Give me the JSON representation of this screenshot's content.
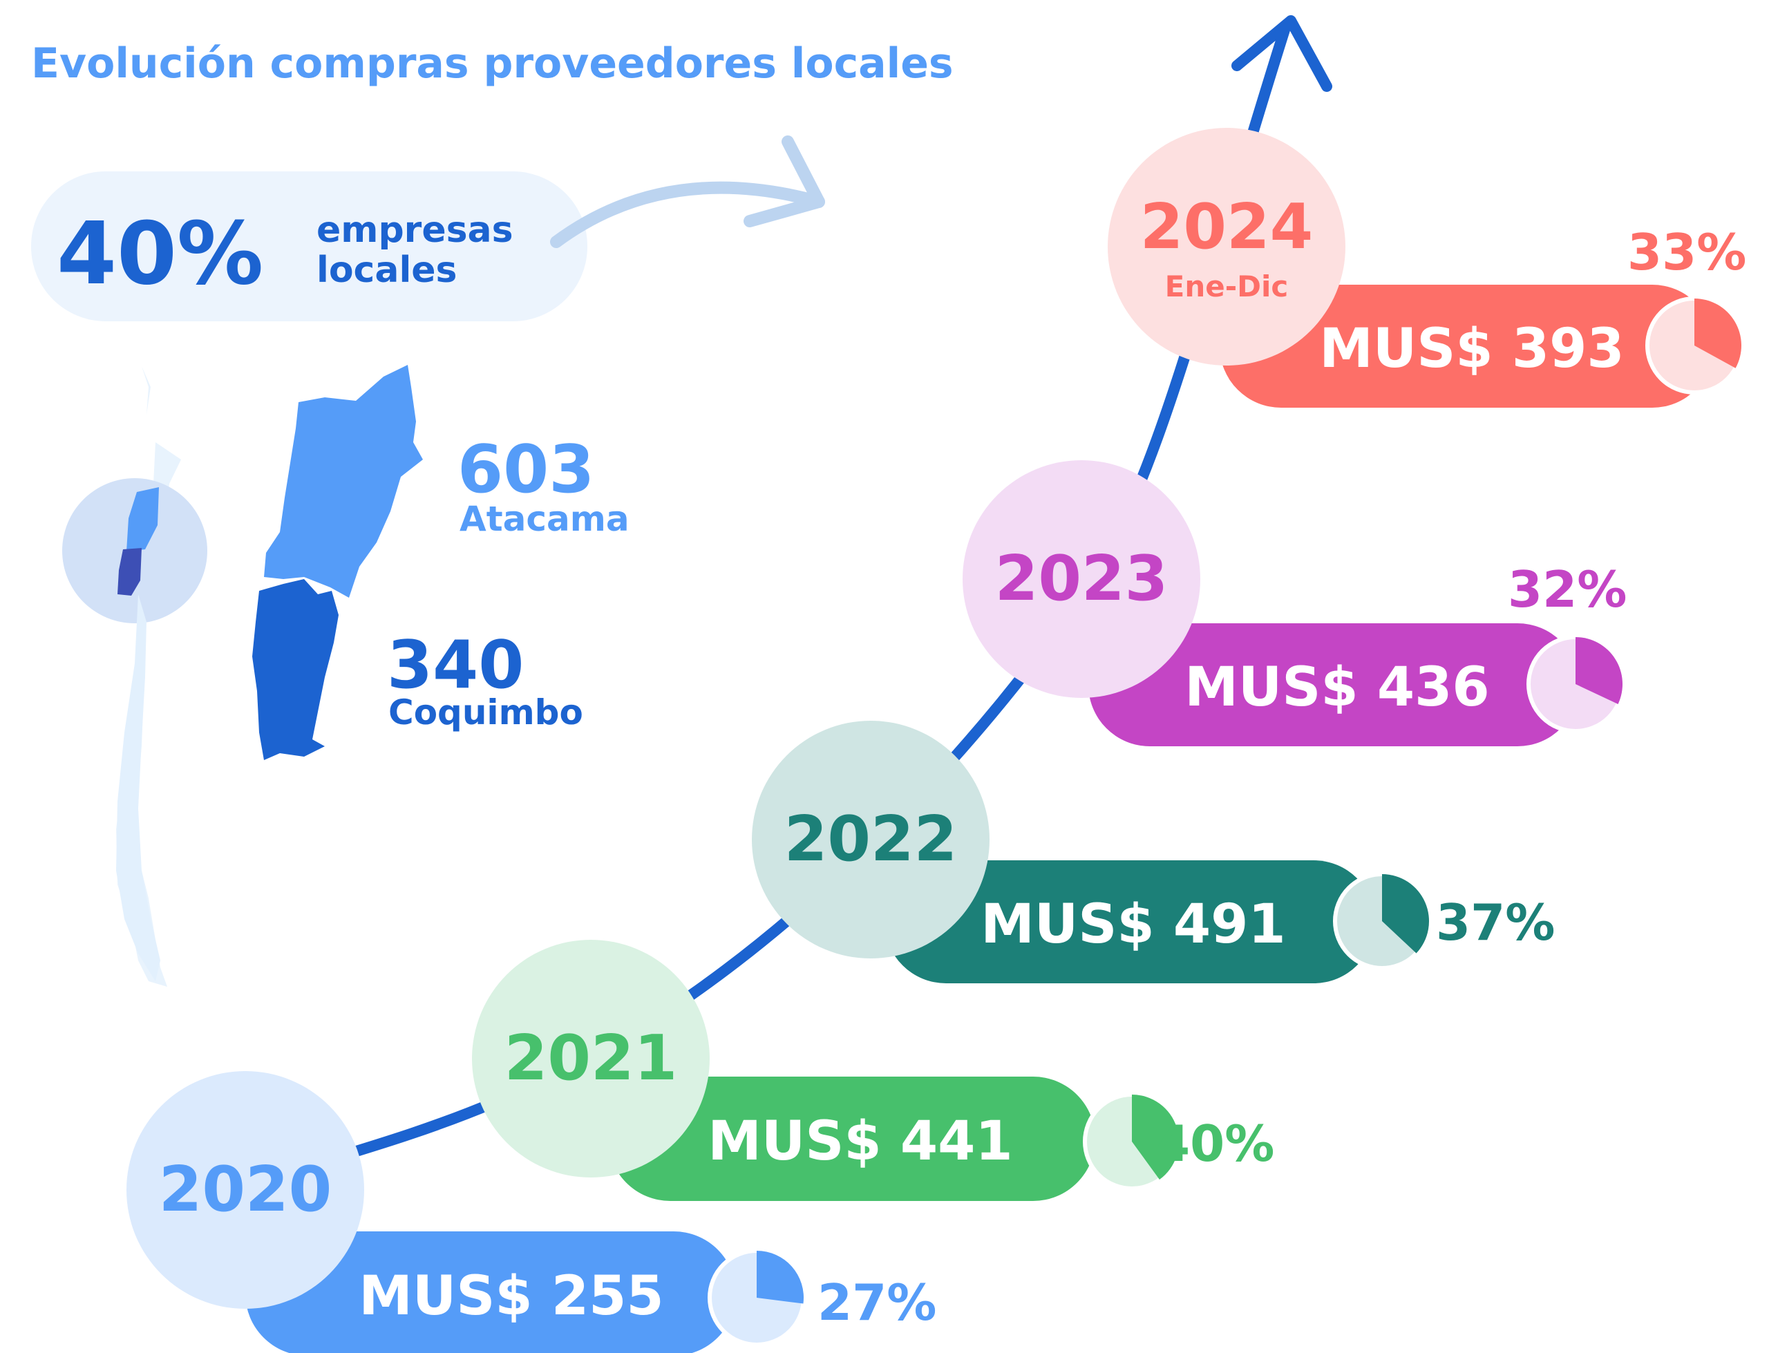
{
  "header": {
    "title": "Evolución compras proveedores locales"
  },
  "summary": {
    "percent": "40%",
    "label_line1": "empresas",
    "label_line2": "locales"
  },
  "regions": [
    {
      "count": "603",
      "name": "Atacama",
      "color": "#559cf8"
    },
    {
      "count": "340",
      "name": "Coquimbo",
      "color": "#1c63d0"
    }
  ],
  "colors": {
    "trend_line": "#1c63d0",
    "title": "#559cf8",
    "summary_bg": "#ecf4fd",
    "curved_arrow": "#bcd4f0"
  },
  "chart_data": {
    "type": "bar",
    "title": "Evolución compras proveedores locales",
    "unit": "MUS$",
    "categories": [
      "2020",
      "2021",
      "2022",
      "2023",
      "2024"
    ],
    "sublabels": [
      "",
      "",
      "",
      "",
      "Ene-Dic"
    ],
    "values": [
      255,
      441,
      491,
      436,
      393
    ],
    "value_labels": [
      "MUS$ 255",
      "MUS$ 441",
      "MUS$ 491",
      "MUS$ 436",
      "MUS$ 393"
    ],
    "percent_values": [
      27,
      40,
      37,
      32,
      33
    ],
    "percent_labels": [
      "27%",
      "40%",
      "37%",
      "32%",
      "33%"
    ],
    "colors": [
      "#559cf8",
      "#47c06c",
      "#1c8078",
      "#c445c5",
      "#fd6f68"
    ],
    "light_colors": [
      "#dbeafd",
      "#daf2e3",
      "#cfe5e3",
      "#f3dcf5",
      "#fde0e0"
    ]
  }
}
